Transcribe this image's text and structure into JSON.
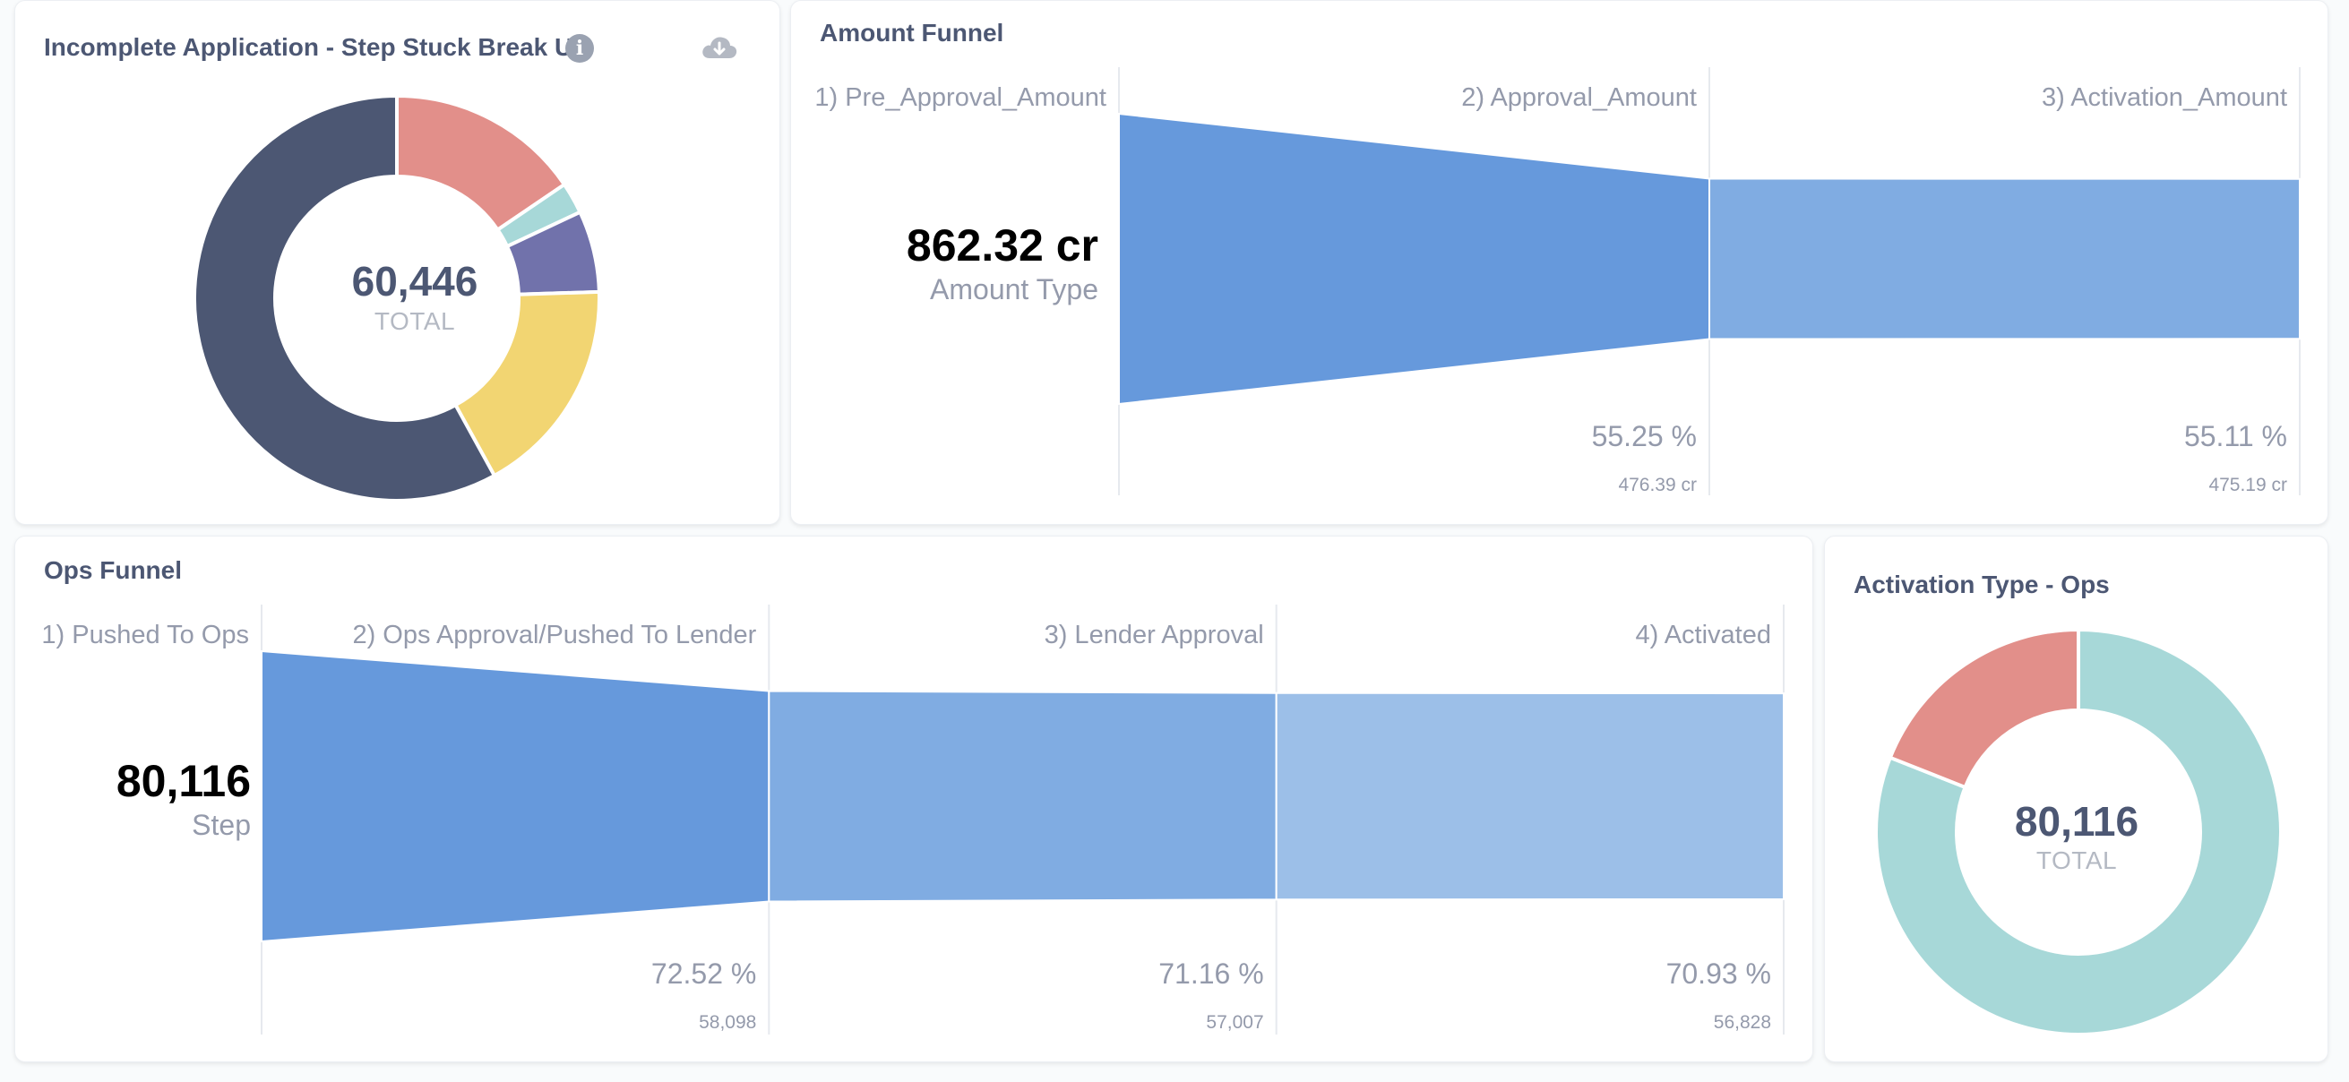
{
  "colors": {
    "page_bg": "#f9fbfc",
    "card_bg": "#ffffff",
    "funnel_shades": [
      "#6699dc",
      "#80ace2",
      "#9cbfe8"
    ],
    "funnel_divider": "#e6e9ee"
  },
  "icons": {
    "info": "info-icon",
    "download": "cloud-download-icon"
  },
  "cards": {
    "incomplete": {
      "title": "Incomplete Application - Step Stuck Break Up",
      "info_glyph": "i",
      "center_value": "60,446",
      "center_label": "TOTAL"
    },
    "amount_funnel": {
      "title": "Amount Funnel",
      "headline_value": "862.32 cr",
      "headline_label": "Amount Type"
    },
    "ops_funnel": {
      "title": "Ops Funnel",
      "headline_value": "80,116",
      "headline_label": "Step"
    },
    "activation_type": {
      "title": "Activation Type - Ops",
      "center_value": "80,116",
      "center_label": "TOTAL"
    }
  },
  "chart_data": [
    {
      "type": "pie",
      "title": "Incomplete Application - Step Stuck Break Up",
      "total": 60446,
      "slices": [
        {
          "percent": 15.5,
          "color": "#e28f8a"
        },
        {
          "percent": 2.5,
          "color": "#a7d8d8"
        },
        {
          "percent": 6.5,
          "color": "#7172ab"
        },
        {
          "percent": 17.5,
          "color": "#f2d572"
        },
        {
          "percent": 58.0,
          "color": "#4c5773"
        }
      ]
    },
    {
      "type": "funnel",
      "title": "Amount Funnel",
      "steps": [
        {
          "label": "1) Pre_Approval_Amount",
          "value": 862.32,
          "value_text": "862.32 cr",
          "percent": 100
        },
        {
          "label": "2) Approval_Amount",
          "value": 476.39,
          "value_text": "476.39 cr",
          "percent": 55.25,
          "percent_text": "55.25 %"
        },
        {
          "label": "3) Activation_Amount",
          "value": 475.19,
          "value_text": "475.19 cr",
          "percent": 55.11,
          "percent_text": "55.11 %"
        }
      ]
    },
    {
      "type": "funnel",
      "title": "Ops Funnel",
      "steps": [
        {
          "label": "1) Pushed To Ops",
          "value": 80116,
          "value_text": "80,116",
          "percent": 100
        },
        {
          "label": "2) Ops Approval/Pushed To Lender",
          "value": 58098,
          "value_text": "58,098",
          "percent": 72.52,
          "percent_text": "72.52 %"
        },
        {
          "label": "3) Lender Approval",
          "value": 57007,
          "value_text": "57,007",
          "percent": 71.16,
          "percent_text": "71.16 %"
        },
        {
          "label": "4) Activated",
          "value": 56828,
          "value_text": "56,828",
          "percent": 70.93,
          "percent_text": "70.93 %"
        }
      ]
    },
    {
      "type": "pie",
      "title": "Activation Type - Ops",
      "total": 80116,
      "slices": [
        {
          "percent": 81.0,
          "color": "#a7d8d8"
        },
        {
          "percent": 19.0,
          "color": "#e28f8a"
        }
      ]
    }
  ]
}
